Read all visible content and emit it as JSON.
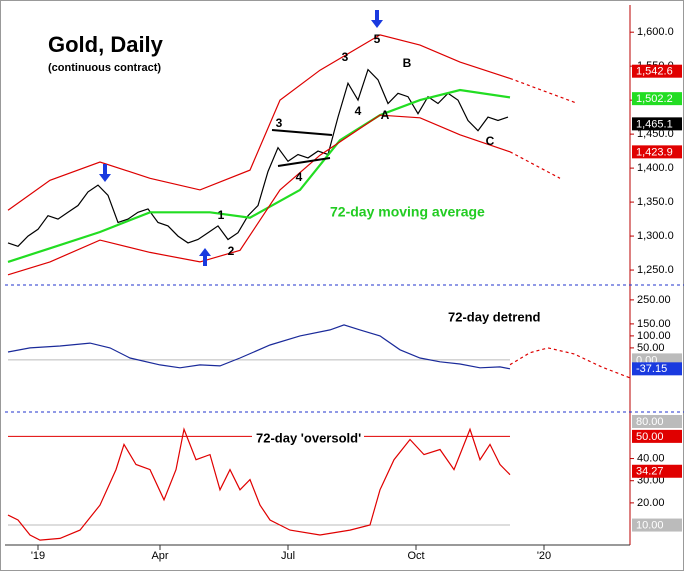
{
  "chart_data": [
    {
      "type": "line",
      "title": "Gold, Daily",
      "subtitle": "(continuous contract)",
      "annotation": "72-day moving average",
      "wave_labels": [
        "1",
        "2",
        "3",
        "4",
        "3",
        "4",
        "5",
        "A",
        "B",
        "C"
      ],
      "xlim": [
        -1.5,
        311
      ],
      "ylim": [
        1228,
        1640
      ],
      "yticks": [
        {
          "value": 1600,
          "label": "1,600.0"
        },
        {
          "value": 1550,
          "label": "1,550.0"
        },
        {
          "value": 1500,
          "label": "1,500.0"
        },
        {
          "value": 1450,
          "label": "1,450.0"
        },
        {
          "value": 1400,
          "label": "1,400.0"
        },
        {
          "value": 1350,
          "label": "1,350.0"
        },
        {
          "value": 1300,
          "label": "1,300.0"
        },
        {
          "value": 1250,
          "label": "1,250.0"
        }
      ],
      "series": [
        {
          "color": "#000000",
          "dash": false,
          "x": [
            0,
            5,
            10,
            15,
            20,
            25,
            30,
            35,
            40,
            45,
            50,
            55,
            60,
            65,
            70,
            75,
            80,
            85,
            90,
            95,
            100,
            105,
            110,
            115,
            120,
            125,
            130,
            135,
            140,
            145,
            150,
            155,
            160,
            165,
            170,
            175,
            180,
            185,
            190,
            195,
            200,
            205,
            210,
            215,
            220,
            225,
            230,
            235,
            240,
            245,
            250
          ],
          "values": [
            1290,
            1285,
            1300,
            1310,
            1330,
            1325,
            1335,
            1345,
            1365,
            1375,
            1360,
            1320,
            1325,
            1335,
            1340,
            1320,
            1315,
            1300,
            1290,
            1295,
            1305,
            1315,
            1295,
            1305,
            1330,
            1345,
            1395,
            1430,
            1410,
            1420,
            1415,
            1425,
            1420,
            1475,
            1525,
            1500,
            1545,
            1530,
            1495,
            1510,
            1505,
            1480,
            1505,
            1495,
            1510,
            1500,
            1470,
            1455,
            1475,
            1470,
            1475
          ]
        },
        {
          "color": "#22dd22",
          "dash": false,
          "x": [
            0,
            21,
            46,
            71,
            101,
            121,
            146,
            166,
            186,
            206,
            226,
            251
          ],
          "values": [
            1262,
            1282,
            1306,
            1335,
            1335,
            1327,
            1368,
            1441,
            1478,
            1500,
            1515,
            1504
          ]
        },
        {
          "color": "#dd0000",
          "dash": false,
          "x": [
            0,
            21,
            46,
            71,
            96,
            121,
            136,
            156,
            186,
            206,
            226,
            251
          ],
          "values": [
            1338,
            1382,
            1409,
            1385,
            1368,
            1397,
            1500,
            1544,
            1596,
            1581,
            1556,
            1532
          ]
        },
        {
          "color": "#dd0000",
          "dash": false,
          "x": [
            0,
            21,
            46,
            71,
            96,
            116,
            136,
            156,
            186,
            206,
            226,
            251
          ],
          "values": [
            1243,
            1262,
            1294,
            1276,
            1262,
            1279,
            1368,
            1419,
            1478,
            1474,
            1449,
            1424
          ]
        },
        {
          "color": "#dd0000",
          "dash": true,
          "x": [
            251,
            284
          ],
          "values": [
            1532,
            1496
          ]
        },
        {
          "color": "#dd0000",
          "dash": true,
          "x": [
            251,
            276
          ],
          "values": [
            1424,
            1385
          ]
        }
      ],
      "tags": [
        {
          "value": 1542.6,
          "label": "1,542.6",
          "color": "#e00000",
          "line": false
        },
        {
          "value": 1502.2,
          "label": "1,502.2",
          "color": "#22dd22",
          "line": false
        },
        {
          "value": 1465.1,
          "label": "1,465.1",
          "color": "#000000",
          "line": false
        },
        {
          "value": 1423.9,
          "label": "1,423.9",
          "color": "#e00000",
          "line": false
        }
      ]
    },
    {
      "type": "line",
      "annotation": "72-day detrend",
      "xlim": [
        -1.5,
        311
      ],
      "ylim": [
        -217,
        312
      ],
      "yticks": [
        {
          "value": 250,
          "label": "250.00"
        },
        {
          "value": 150,
          "label": "150.00"
        },
        {
          "value": 100,
          "label": "100.00"
        },
        {
          "value": 50,
          "label": "50.00"
        }
      ],
      "series": [
        {
          "color": "#1a2a9a",
          "dash": false,
          "x": [
            0,
            11,
            26,
            41,
            51,
            61,
            76,
            86,
            96,
            106,
            116,
            131,
            146,
            161,
            168,
            176,
            186,
            196,
            206,
            216,
            226,
            236,
            246,
            251
          ],
          "values": [
            33,
            50,
            58,
            70,
            50,
            8,
            -21,
            -33,
            -21,
            -25,
            8,
            62,
            100,
            125,
            146,
            125,
            100,
            42,
            8,
            -8,
            -17,
            -33,
            -29,
            -37
          ]
        },
        {
          "color": "#dd0000",
          "dash": true,
          "x": [
            251,
            261,
            270,
            283,
            297,
            311
          ],
          "values": [
            -20,
            30,
            50,
            25,
            -30,
            -75
          ]
        }
      ],
      "tags": [
        {
          "value": 0,
          "label": "0.00",
          "color": "#bbbbbb",
          "line": true
        },
        {
          "value": -37.15,
          "label": "-37.15",
          "color": "#1a3adf",
          "line": false
        }
      ]
    },
    {
      "type": "line",
      "annotation": "72-day 'oversold'",
      "top_tag": "80.00",
      "xlim": [
        -1.5,
        311
      ],
      "ylim": [
        1,
        61
      ],
      "xticks": [
        {
          "value": 15,
          "label": "'19"
        },
        {
          "value": 76,
          "label": "Apr"
        },
        {
          "value": 140,
          "label": "Jul"
        },
        {
          "value": 204,
          "label": "Oct"
        },
        {
          "value": 268,
          "label": "'20"
        }
      ],
      "yticks": [
        {
          "value": 40,
          "label": "40.00"
        },
        {
          "value": 30,
          "label": "30.00"
        },
        {
          "value": 20,
          "label": "20.00"
        }
      ],
      "series": [
        {
          "color": "#e00000",
          "dash": false,
          "x": [
            0,
            5,
            11,
            16,
            26,
            36,
            46,
            54,
            58,
            64,
            71,
            78,
            84,
            88,
            94,
            101,
            106,
            111,
            116,
            121,
            126,
            131,
            141,
            156,
            171,
            181,
            186,
            193,
            201,
            208,
            216,
            223,
            231,
            236,
            241,
            246,
            251
          ],
          "values": [
            14.5,
            12.3,
            5.5,
            3.2,
            4,
            7.7,
            19,
            35,
            46.4,
            37.3,
            35,
            21.4,
            35,
            53.2,
            39.5,
            41.8,
            25.9,
            35,
            25.9,
            30.5,
            19,
            12.3,
            7.7,
            5.5,
            7.7,
            10,
            25.9,
            39.5,
            48.6,
            41.8,
            44.1,
            35,
            53.2,
            39.5,
            46.4,
            37.3,
            32.7
          ]
        }
      ],
      "tags": [
        {
          "value": 50,
          "label": "50.00",
          "color": "#e00000",
          "line": true
        },
        {
          "value": 34.27,
          "label": "34.27",
          "color": "#e00000",
          "line": false
        },
        {
          "value": 10,
          "label": "10.00",
          "color": "#bbbbbb",
          "line": true
        }
      ]
    }
  ]
}
